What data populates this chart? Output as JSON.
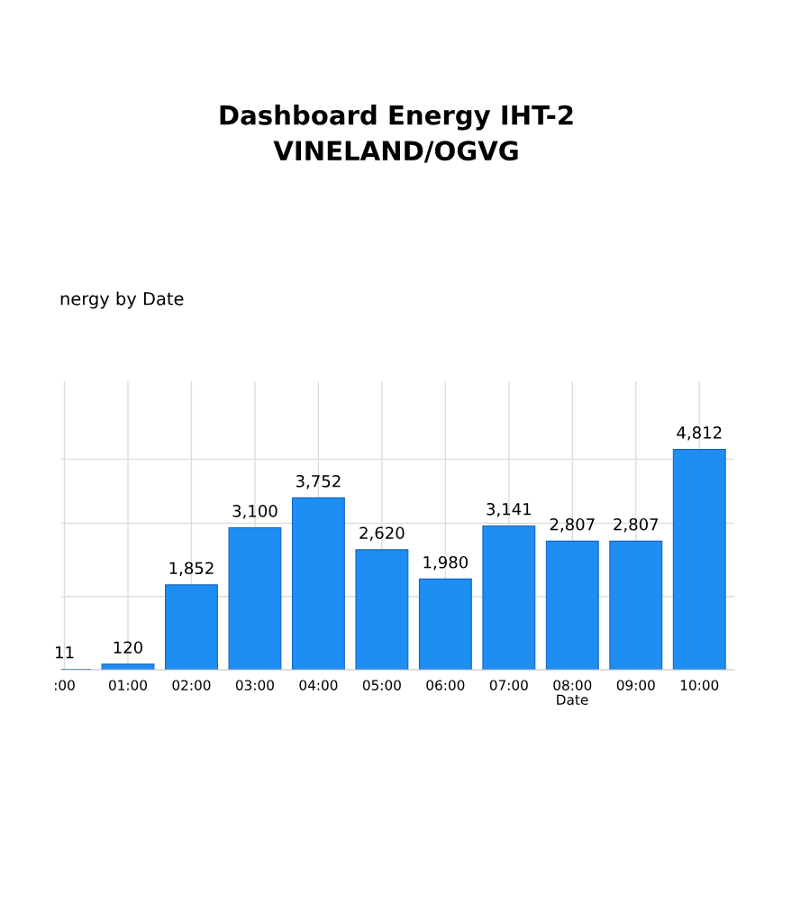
{
  "chart_data": {
    "type": "bar",
    "title": "Dashboard Energy IHT-2\nVINELAND/OGVG",
    "subtitle": "nergy by Date",
    "xlabel": "Date",
    "categories": [
      ":00",
      "01:00",
      "02:00",
      "03:00",
      "04:00",
      "05:00",
      "06:00",
      "07:00",
      "08:00",
      "09:00",
      "10:00"
    ],
    "values": [
      11,
      120,
      1852,
      3100,
      3752,
      2620,
      1980,
      3141,
      2807,
      2807,
      4812
    ],
    "value_labels": [
      "11",
      "120",
      "1,852",
      "3,100",
      "3,752",
      "2,620",
      "1,980",
      "3,141",
      "2,807",
      "2,807",
      "4,812"
    ],
    "color": "#1e8ef2",
    "ylim": [
      0,
      6300
    ],
    "yticks": [
      {
        "value": 1600,
        "label": null
      },
      {
        "value": 3200,
        "label": null
      },
      {
        "value": 4600,
        "label": null
      }
    ],
    "grid": true,
    "tick_labels": "x",
    "legend": false
  }
}
